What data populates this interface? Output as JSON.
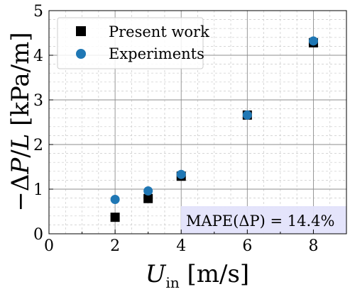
{
  "chart_data": {
    "type": "scatter",
    "title": "",
    "xlabel": "U_in [m/s]",
    "ylabel": "−ΔP/L [kPa/m]",
    "xlim": [
      0,
      9
    ],
    "ylim": [
      0,
      5
    ],
    "xticks": [
      0,
      2,
      4,
      6,
      8
    ],
    "yticks": [
      0,
      1,
      2,
      3,
      4,
      5
    ],
    "xtick_labels": [
      "0",
      "2",
      "4",
      "6",
      "8"
    ],
    "ytick_labels": [
      "0",
      "1",
      "2",
      "3",
      "4",
      "5"
    ],
    "grid": true,
    "minor_grid": true,
    "legend_location": "upper-left",
    "series": [
      {
        "name": "Present work",
        "marker": "square",
        "color": "#000000",
        "x": [
          2,
          3,
          4,
          6,
          8
        ],
        "y": [
          0.37,
          0.79,
          1.29,
          2.66,
          4.28
        ]
      },
      {
        "name": "Experiments",
        "marker": "circle",
        "color": "#1f77b4",
        "x": [
          2,
          3,
          4,
          6,
          8
        ],
        "y": [
          0.77,
          0.96,
          1.33,
          2.66,
          4.32
        ]
      }
    ],
    "annotation": {
      "text": "MAPE(ΔP) = 14.4%",
      "box_color": "#e3e3fb"
    }
  }
}
